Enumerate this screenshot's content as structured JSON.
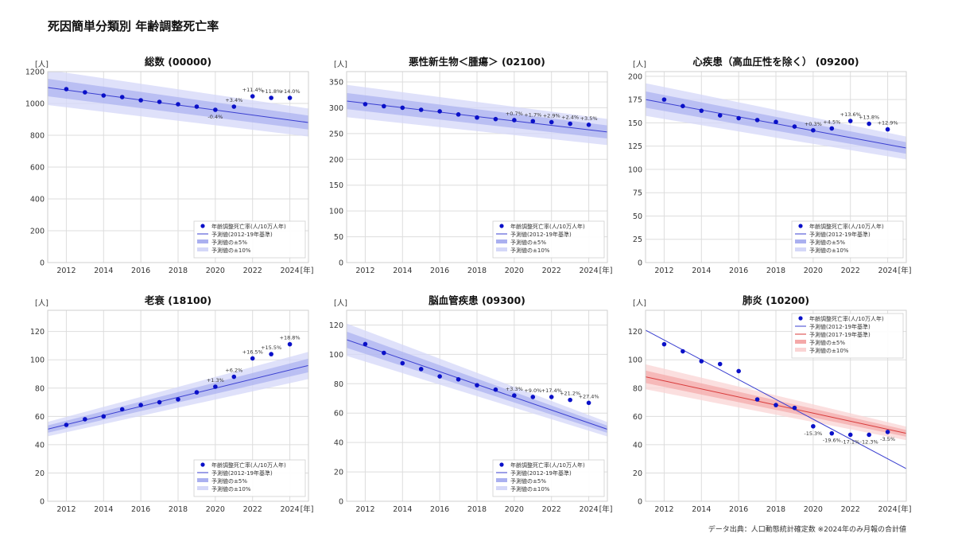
{
  "page_title": "死因簡単分類別 年齢調整死亡率",
  "source_note": "データ出典：人口動態統計確定数 ※2024年のみ月報の合計値",
  "y_unit": "[人]",
  "x_unit": "[年]",
  "colors": {
    "actual": "#0a10c8",
    "base_line": "#3a3fd0",
    "band5_blue": "#aab0f0",
    "band10_blue": "#d4d7f8",
    "alt_line": "#d83a3a",
    "band5_red": "#f4a8a8",
    "band10_red": "#fad4d4",
    "grid": "#dddddd"
  },
  "chart_data": [
    {
      "type": "scatter",
      "title": "総数 (00000)",
      "x": [
        2012,
        2013,
        2014,
        2015,
        2016,
        2017,
        2018,
        2019,
        2020,
        2021,
        2022,
        2023,
        2024
      ],
      "xlim": [
        2011,
        2025
      ],
      "ylim": [
        0,
        1200
      ],
      "yticks": [
        0,
        200,
        400,
        600,
        800,
        1000,
        1200
      ],
      "xticks": [
        2012,
        2014,
        2016,
        2018,
        2020,
        2022,
        2024
      ],
      "grid": true,
      "legend_position": "bottom-right",
      "series": [
        {
          "name": "年齢調整死亡率(人/10万人年)",
          "kind": "points",
          "values": [
            1090,
            1070,
            1050,
            1040,
            1020,
            1010,
            995,
            980,
            960,
            980,
            1045,
            1035,
            1035
          ]
        },
        {
          "name": "予測値(2012-19年基準)",
          "kind": "line",
          "x": [
            2011,
            2025
          ],
          "values": [
            1100,
            880
          ]
        },
        {
          "name": "予測値の±5%",
          "kind": "band",
          "pct": 5
        },
        {
          "name": "予測値の±10%",
          "kind": "band",
          "pct": 10
        }
      ],
      "annotations": [
        {
          "x": 2020,
          "text": "-0.4%",
          "pos": "below"
        },
        {
          "x": 2021,
          "text": "+3.4%",
          "pos": "above"
        },
        {
          "x": 2022,
          "text": "+11.4%",
          "pos": "above"
        },
        {
          "x": 2023,
          "text": "+11.8%",
          "pos": "above"
        },
        {
          "x": 2024,
          "text": "+14.0%",
          "pos": "above"
        }
      ]
    },
    {
      "type": "scatter",
      "title": "悪性新生物＜腫瘍＞ (02100)",
      "x": [
        2012,
        2013,
        2014,
        2015,
        2016,
        2017,
        2018,
        2019,
        2020,
        2021,
        2022,
        2023,
        2024
      ],
      "xlim": [
        2011,
        2025
      ],
      "ylim": [
        0,
        370
      ],
      "yticks": [
        0,
        50,
        100,
        150,
        200,
        250,
        300,
        350
      ],
      "xticks": [
        2012,
        2014,
        2016,
        2018,
        2020,
        2022,
        2024
      ],
      "grid": true,
      "legend_position": "bottom-right",
      "series": [
        {
          "name": "年齢調整死亡率(人/10万人年)",
          "kind": "points",
          "values": [
            307,
            303,
            300,
            296,
            293,
            287,
            281,
            278,
            276,
            274,
            272,
            269,
            267
          ]
        },
        {
          "name": "予測値(2012-19年基準)",
          "kind": "line",
          "x": [
            2011,
            2025
          ],
          "values": [
            313,
            253
          ]
        },
        {
          "name": "予測値の±5%",
          "kind": "band",
          "pct": 5
        },
        {
          "name": "予測値の±10%",
          "kind": "band",
          "pct": 10
        }
      ],
      "annotations": [
        {
          "x": 2020,
          "text": "+0.7%",
          "pos": "above"
        },
        {
          "x": 2021,
          "text": "+1.7%",
          "pos": "above"
        },
        {
          "x": 2022,
          "text": "+2.9%",
          "pos": "above"
        },
        {
          "x": 2023,
          "text": "+2.4%",
          "pos": "above"
        },
        {
          "x": 2024,
          "text": "+3.5%",
          "pos": "above"
        }
      ]
    },
    {
      "type": "scatter",
      "title": "心疾患（高血圧性を除く） (09200)",
      "x": [
        2012,
        2013,
        2014,
        2015,
        2016,
        2017,
        2018,
        2019,
        2020,
        2021,
        2022,
        2023,
        2024
      ],
      "xlim": [
        2011,
        2025
      ],
      "ylim": [
        0,
        205
      ],
      "yticks": [
        0,
        25,
        50,
        75,
        100,
        125,
        150,
        175,
        200
      ],
      "xticks": [
        2012,
        2014,
        2016,
        2018,
        2020,
        2022,
        2024
      ],
      "grid": true,
      "legend_position": "bottom-right",
      "series": [
        {
          "name": "年齢調整死亡率(人/10万人年)",
          "kind": "points",
          "values": [
            175,
            168,
            163,
            158,
            155,
            153,
            151,
            146,
            142,
            144,
            152,
            149,
            143
          ]
        },
        {
          "name": "予測値(2012-19年基準)",
          "kind": "line",
          "x": [
            2011,
            2025
          ],
          "values": [
            175,
            123
          ]
        },
        {
          "name": "予測値の±5%",
          "kind": "band",
          "pct": 5
        },
        {
          "name": "予測値の±10%",
          "kind": "band",
          "pct": 10
        }
      ],
      "annotations": [
        {
          "x": 2020,
          "text": "+0.3%",
          "pos": "above"
        },
        {
          "x": 2021,
          "text": "+4.5%",
          "pos": "above"
        },
        {
          "x": 2022,
          "text": "+13.6%",
          "pos": "above"
        },
        {
          "x": 2023,
          "text": "+13.8%",
          "pos": "above"
        },
        {
          "x": 2024,
          "text": "+12.9%",
          "pos": "above"
        }
      ]
    },
    {
      "type": "scatter",
      "title": "老衰 (18100)",
      "x": [
        2012,
        2013,
        2014,
        2015,
        2016,
        2017,
        2018,
        2019,
        2020,
        2021,
        2022,
        2023,
        2024
      ],
      "xlim": [
        2011,
        2025
      ],
      "ylim": [
        0,
        135
      ],
      "yticks": [
        0,
        20,
        40,
        60,
        80,
        100,
        120
      ],
      "xticks": [
        2012,
        2014,
        2016,
        2018,
        2020,
        2022,
        2024
      ],
      "grid": true,
      "legend_position": "bottom-right",
      "series": [
        {
          "name": "年齢調整死亡率(人/10万人年)",
          "kind": "points",
          "values": [
            54,
            58,
            60,
            65,
            68,
            70,
            72,
            77,
            81,
            88,
            101,
            104,
            111
          ]
        },
        {
          "name": "予測値(2012-19年基準)",
          "kind": "line",
          "x": [
            2011,
            2025
          ],
          "values": [
            51,
            96
          ]
        },
        {
          "name": "予測値の±5%",
          "kind": "band",
          "pct": 5
        },
        {
          "name": "予測値の±10%",
          "kind": "band",
          "pct": 10
        }
      ],
      "annotations": [
        {
          "x": 2020,
          "text": "+1.3%",
          "pos": "above"
        },
        {
          "x": 2021,
          "text": "+6.2%",
          "pos": "above"
        },
        {
          "x": 2022,
          "text": "+16.5%",
          "pos": "above"
        },
        {
          "x": 2023,
          "text": "+15.5%",
          "pos": "above"
        },
        {
          "x": 2024,
          "text": "+18.8%",
          "pos": "above"
        }
      ]
    },
    {
      "type": "scatter",
      "title": "脳血管疾患 (09300)",
      "x": [
        2012,
        2013,
        2014,
        2015,
        2016,
        2017,
        2018,
        2019,
        2020,
        2021,
        2022,
        2023,
        2024
      ],
      "xlim": [
        2011,
        2025
      ],
      "ylim": [
        0,
        130
      ],
      "yticks": [
        0,
        20,
        40,
        60,
        80,
        100,
        120
      ],
      "xticks": [
        2012,
        2014,
        2016,
        2018,
        2020,
        2022,
        2024
      ],
      "grid": true,
      "legend_position": "bottom-right",
      "series": [
        {
          "name": "年齢調整死亡率(人/10万人年)",
          "kind": "points",
          "values": [
            107,
            101,
            94,
            90,
            85,
            83,
            79,
            76,
            72,
            71,
            71,
            69,
            67
          ]
        },
        {
          "name": "予測値(2012-19年基準)",
          "kind": "line",
          "x": [
            2011,
            2025
          ],
          "values": [
            110,
            49
          ]
        },
        {
          "name": "予測値の±5%",
          "kind": "band",
          "pct": 5
        },
        {
          "name": "予測値の±10%",
          "kind": "band",
          "pct": 10
        }
      ],
      "annotations": [
        {
          "x": 2020,
          "text": "+3.3%",
          "pos": "above"
        },
        {
          "x": 2021,
          "text": "+9.0%",
          "pos": "above"
        },
        {
          "x": 2022,
          "text": "+17.4%",
          "pos": "above"
        },
        {
          "x": 2023,
          "text": "+21.2%",
          "pos": "above"
        },
        {
          "x": 2024,
          "text": "+27.4%",
          "pos": "above"
        }
      ]
    },
    {
      "type": "scatter",
      "title": "肺炎 (10200)",
      "x": [
        2012,
        2013,
        2014,
        2015,
        2016,
        2017,
        2018,
        2019,
        2020,
        2021,
        2022,
        2023,
        2024
      ],
      "xlim": [
        2011,
        2025
      ],
      "ylim": [
        0,
        135
      ],
      "yticks": [
        0,
        20,
        40,
        60,
        80,
        100,
        120
      ],
      "xticks": [
        2012,
        2014,
        2016,
        2018,
        2020,
        2022,
        2024
      ],
      "grid": true,
      "legend_position": "top-right",
      "series": [
        {
          "name": "年齢調整死亡率(人/10万人年)",
          "kind": "points",
          "values": [
            111,
            106,
            99,
            97,
            92,
            72,
            68,
            66,
            53,
            48,
            47,
            47,
            49
          ]
        },
        {
          "name": "予測値(2012-19年基準)",
          "kind": "line",
          "x": [
            2011,
            2025
          ],
          "values": [
            121,
            23
          ]
        },
        {
          "name": "予測値(2017-19年基準)",
          "kind": "line",
          "x": [
            2011,
            2025
          ],
          "values": [
            88,
            48
          ],
          "color": "red"
        },
        {
          "name": "予測値の±5%",
          "kind": "band",
          "pct": 5,
          "color": "red"
        },
        {
          "name": "予測値の±10%",
          "kind": "band",
          "pct": 10,
          "color": "red"
        }
      ],
      "annotations": [
        {
          "x": 2020,
          "text": "-15.3%",
          "pos": "below"
        },
        {
          "x": 2021,
          "text": "-19.6%",
          "pos": "below"
        },
        {
          "x": 2022,
          "text": "-17.1%",
          "pos": "below"
        },
        {
          "x": 2023,
          "text": "-12.3%",
          "pos": "below"
        },
        {
          "x": 2024,
          "text": "-3.5%",
          "pos": "below"
        }
      ]
    }
  ]
}
